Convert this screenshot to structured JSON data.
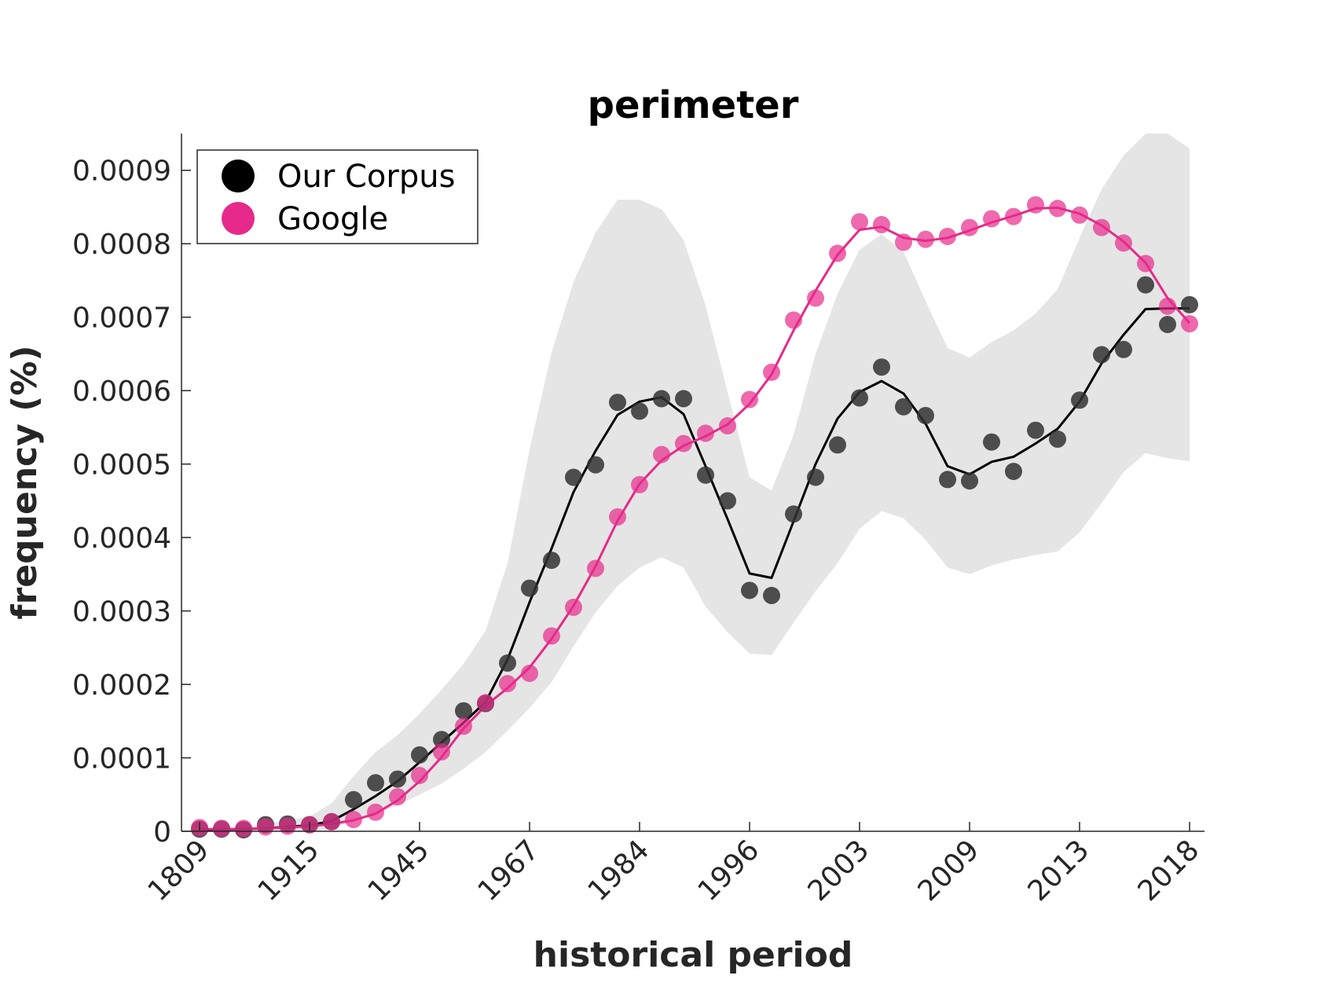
{
  "chart_data": {
    "type": "scatter",
    "title": "perimeter",
    "xlabel": "historical period",
    "ylabel": "frequency (%)",
    "x_tick_labels": [
      "1809",
      "1915",
      "1945",
      "1967",
      "1984",
      "1996",
      "2003",
      "2009",
      "2013",
      "2018"
    ],
    "y_tick_labels": [
      "0",
      "0.0001",
      "0.0002",
      "0.0003",
      "0.0004",
      "0.0005",
      "0.0006",
      "0.0007",
      "0.0008",
      "0.0009"
    ],
    "ylim": [
      0,
      0.00095
    ],
    "grid": false,
    "legend_position": "top-left",
    "series": [
      {
        "name": "Our Corpus",
        "color": "#333333",
        "line_color": "#000000",
        "points": [
          3e-06,
          3e-06,
          2e-06,
          9e-06,
          1e-05,
          9e-06,
          1.3e-05,
          4.3e-05,
          6.6e-05,
          7.1e-05,
          0.000104,
          0.000125,
          0.000164,
          0.000174,
          0.000229,
          0.000331,
          0.000369,
          0.000482,
          0.000499,
          0.000584,
          0.000572,
          0.000589,
          0.000589,
          0.000485,
          0.00045,
          0.000328,
          0.000321,
          0.000432,
          0.000482,
          0.000526,
          0.00059,
          0.000632,
          0.000578,
          0.000566,
          0.000479,
          0.000477,
          0.00053,
          0.00049,
          0.000546,
          0.000534,
          0.000587,
          0.000649,
          0.000656,
          0.000744,
          0.00069,
          0.000717
        ],
        "trend": [
          2e-06,
          2e-06,
          3e-06,
          4e-06,
          6e-06,
          8e-06,
          1.4e-05,
          3e-05,
          4.8e-05,
          6.8e-05,
          9.4e-05,
          0.000121,
          0.000148,
          0.000176,
          0.000234,
          0.000312,
          0.000385,
          0.000462,
          0.000518,
          0.000567,
          0.000585,
          0.000591,
          0.000568,
          0.000497,
          0.000425,
          0.000351,
          0.000345,
          0.000422,
          0.0005,
          0.000562,
          0.000598,
          0.000613,
          0.000596,
          0.000555,
          0.000497,
          0.000486,
          0.000503,
          0.00051,
          0.000528,
          0.000548,
          0.000585,
          0.000637,
          0.000676,
          0.000711,
          0.000712,
          0.000712
        ],
        "band_upper": [
          4e-06,
          5e-06,
          6e-06,
          1e-05,
          1.5e-05,
          2e-05,
          3.8e-05,
          7.5e-05,
          0.000108,
          0.000131,
          0.00016,
          0.000193,
          0.000228,
          0.000273,
          0.000365,
          0.00052,
          0.000652,
          0.000748,
          0.000815,
          0.00086,
          0.00086,
          0.000847,
          0.000805,
          0.000716,
          0.000598,
          0.000482,
          0.000464,
          0.00054,
          0.00065,
          0.000732,
          0.000792,
          0.000813,
          0.000789,
          0.000722,
          0.000658,
          0.000645,
          0.000666,
          0.000682,
          0.000705,
          0.000738,
          0.000808,
          0.000874,
          0.00092,
          0.00095,
          0.00095,
          0.00093
        ],
        "band_lower": [
          1e-06,
          1e-06,
          1e-06,
          1e-06,
          1e-06,
          1e-06,
          2e-06,
          1.5e-05,
          2.5e-05,
          3.5e-05,
          5e-05,
          6.5e-05,
          8.5e-05,
          0.000108,
          0.000137,
          0.000168,
          0.000203,
          0.000252,
          0.000298,
          0.000334,
          0.000359,
          0.000373,
          0.000359,
          0.000306,
          0.000271,
          0.000242,
          0.00024,
          0.000284,
          0.000327,
          0.000365,
          0.000412,
          0.000436,
          0.000426,
          0.000397,
          0.000359,
          0.00035,
          0.000362,
          0.00037,
          0.000376,
          0.000381,
          0.000407,
          0.000447,
          0.000489,
          0.000515,
          0.000508,
          0.000504
        ]
      },
      {
        "name": "Google",
        "color": "#e7298a",
        "line_color": "#e7298a",
        "points": [
          5e-06,
          4e-06,
          4e-06,
          6e-06,
          7e-06,
          9e-06,
          1.3e-05,
          1.6e-05,
          2.6e-05,
          4.7e-05,
          7.6e-05,
          0.000108,
          0.000143,
          0.000175,
          0.000201,
          0.000215,
          0.000266,
          0.000305,
          0.000358,
          0.000428,
          0.000472,
          0.000513,
          0.000528,
          0.000542,
          0.000552,
          0.000588,
          0.000625,
          0.000696,
          0.000726,
          0.000787,
          0.00083,
          0.000826,
          0.000802,
          0.000806,
          0.00081,
          0.000822,
          0.000834,
          0.000837,
          0.000853,
          0.000848,
          0.000839,
          0.000822,
          0.000801,
          0.000773,
          0.000715,
          0.000691
        ],
        "trend": [
          3e-06,
          3e-06,
          3e-06,
          4e-06,
          5e-06,
          7e-06,
          1e-05,
          1.5e-05,
          2.4e-05,
          4.2e-05,
          6.8e-05,
          0.000101,
          0.00014,
          0.000171,
          0.000195,
          0.000223,
          0.000262,
          0.000307,
          0.000361,
          0.000423,
          0.000473,
          0.000505,
          0.000525,
          0.000538,
          0.000554,
          0.000582,
          0.000622,
          0.000682,
          0.000736,
          0.000785,
          0.000819,
          0.000823,
          0.000808,
          0.000804,
          0.000808,
          0.000818,
          0.000829,
          0.000838,
          0.000848,
          0.000849,
          0.000841,
          0.000825,
          0.000803,
          0.000774,
          0.000726,
          0.000692
        ]
      }
    ]
  }
}
